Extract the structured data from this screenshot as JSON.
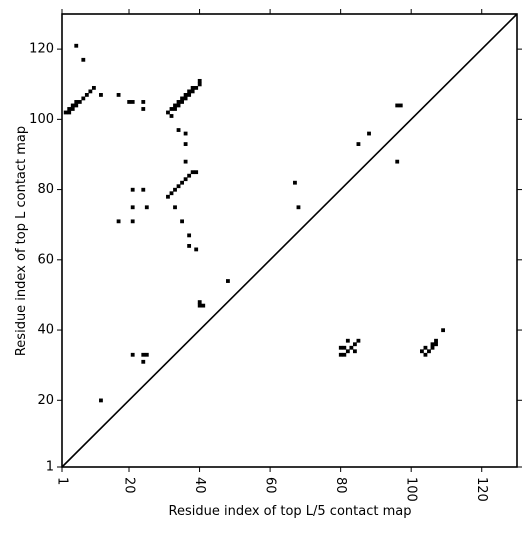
{
  "chart_data": {
    "type": "heatmap",
    "title": "",
    "xlabel": "Residue index of top L/5 contact map",
    "ylabel": "Residue index of top L contact map",
    "xlim": [
      1,
      130
    ],
    "ylim": [
      1,
      130
    ],
    "x_ticks": [
      1,
      20,
      40,
      60,
      80,
      100,
      120
    ],
    "y_ticks": [
      1,
      20,
      40,
      60,
      80,
      100,
      120
    ],
    "x_tick_labels": [
      "1",
      "20",
      "40",
      "60",
      "80",
      "100",
      "120"
    ],
    "y_tick_labels": [
      "1",
      "20",
      "40",
      "60",
      "80",
      "100",
      "120"
    ],
    "x_tick_label_rotation": 90,
    "diagonal": {
      "from": [
        1,
        1
      ],
      "to": [
        130,
        130
      ]
    },
    "cell_color": "#000000",
    "background_color": "#ffffff",
    "upper_triangle_contacts": [
      [
        5,
        121
      ],
      [
        7,
        117
      ],
      [
        2,
        102
      ],
      [
        3,
        102
      ],
      [
        3,
        103
      ],
      [
        4,
        103
      ],
      [
        4,
        104
      ],
      [
        5,
        104
      ],
      [
        5,
        105
      ],
      [
        6,
        105
      ],
      [
        7,
        106
      ],
      [
        8,
        107
      ],
      [
        9,
        108
      ],
      [
        10,
        109
      ],
      [
        12,
        107
      ],
      [
        17,
        107
      ],
      [
        20,
        105
      ],
      [
        21,
        105
      ],
      [
        24,
        105
      ],
      [
        24,
        103
      ],
      [
        31,
        102
      ],
      [
        32,
        101
      ],
      [
        32,
        103
      ],
      [
        33,
        103
      ],
      [
        33,
        104
      ],
      [
        34,
        104
      ],
      [
        34,
        105
      ],
      [
        35,
        105
      ],
      [
        35,
        106
      ],
      [
        36,
        106
      ],
      [
        36,
        107
      ],
      [
        37,
        107
      ],
      [
        37,
        108
      ],
      [
        38,
        108
      ],
      [
        38,
        109
      ],
      [
        39,
        109
      ],
      [
        40,
        110
      ],
      [
        40,
        111
      ],
      [
        34,
        97
      ],
      [
        36,
        96
      ],
      [
        36,
        93
      ],
      [
        36,
        88
      ],
      [
        31,
        78
      ],
      [
        32,
        79
      ],
      [
        33,
        80
      ],
      [
        34,
        81
      ],
      [
        35,
        82
      ],
      [
        36,
        83
      ],
      [
        37,
        84
      ],
      [
        38,
        85
      ],
      [
        39,
        85
      ],
      [
        21,
        80
      ],
      [
        24,
        80
      ],
      [
        21,
        75
      ],
      [
        25,
        75
      ],
      [
        33,
        75
      ],
      [
        17,
        71
      ],
      [
        21,
        71
      ],
      [
        35,
        71
      ],
      [
        37,
        67
      ],
      [
        37,
        64
      ],
      [
        39,
        63
      ],
      [
        48,
        54
      ],
      [
        40,
        47
      ],
      [
        41,
        47
      ],
      [
        40,
        48
      ],
      [
        67,
        82
      ],
      [
        68,
        75
      ],
      [
        85,
        93
      ],
      [
        88,
        96
      ],
      [
        96,
        88
      ],
      [
        96,
        104
      ],
      [
        97,
        104
      ]
    ],
    "lower_triangle_contacts": [
      [
        12,
        20
      ],
      [
        21,
        33
      ],
      [
        24,
        33
      ],
      [
        25,
        33
      ],
      [
        24,
        31
      ],
      [
        80,
        33
      ],
      [
        81,
        33
      ],
      [
        82,
        34
      ],
      [
        83,
        35
      ],
      [
        84,
        36
      ],
      [
        85,
        37
      ],
      [
        82,
        37
      ],
      [
        80,
        35
      ],
      [
        81,
        35
      ],
      [
        84,
        34
      ],
      [
        104,
        33
      ],
      [
        105,
        34
      ],
      [
        104,
        35
      ],
      [
        106,
        35
      ],
      [
        106,
        36
      ],
      [
        107,
        36
      ],
      [
        107,
        37
      ],
      [
        109,
        40
      ],
      [
        103,
        34
      ]
    ]
  }
}
